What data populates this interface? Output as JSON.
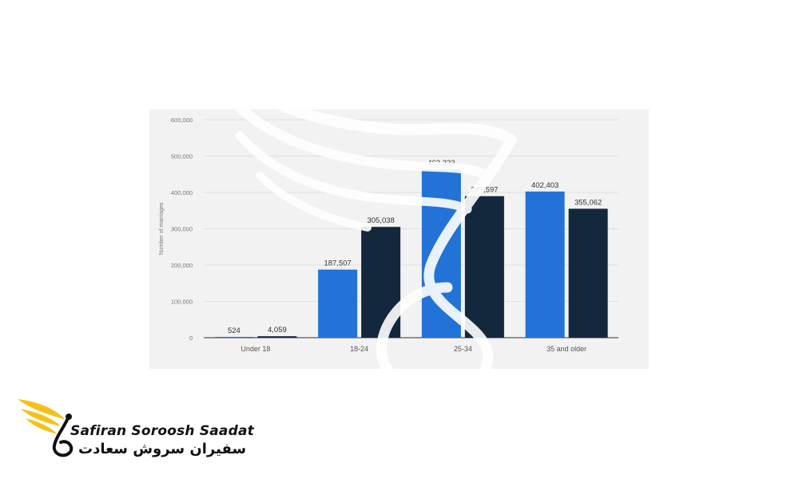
{
  "chart_data": {
    "type": "bar",
    "title": "",
    "xlabel": "",
    "ylabel": "Number of marriages",
    "categories": [
      "Under 18",
      "18-24",
      "25-34",
      "35 and older"
    ],
    "series": [
      {
        "color": "#2272d8",
        "values": [
          524,
          187507,
          463322,
          402403
        ],
        "labels": [
          "524",
          "187,507",
          "463,322",
          "402,403"
        ]
      },
      {
        "color": "#14283d",
        "values": [
          4059,
          305038,
          389597,
          355062
        ],
        "labels": [
          "4,059",
          "305,038",
          "389,597",
          "355,062"
        ]
      }
    ],
    "ylim": [
      0,
      600000
    ],
    "yticks": [
      0,
      100000,
      200000,
      300000,
      400000,
      500000,
      600000
    ],
    "ytick_labels": [
      "0",
      "100,000",
      "200,000",
      "300,000",
      "400,000",
      "500,000",
      "600,000"
    ],
    "grid": true,
    "legend": "none"
  },
  "logo": {
    "text_en": "Safiran Soroosh Saadat",
    "text_fa": "سفیران سروش سعادت",
    "colors": {
      "wing": "#f2c21b",
      "ink": "#111111"
    }
  },
  "watermark": {
    "icon": "wing-swan-icon"
  }
}
